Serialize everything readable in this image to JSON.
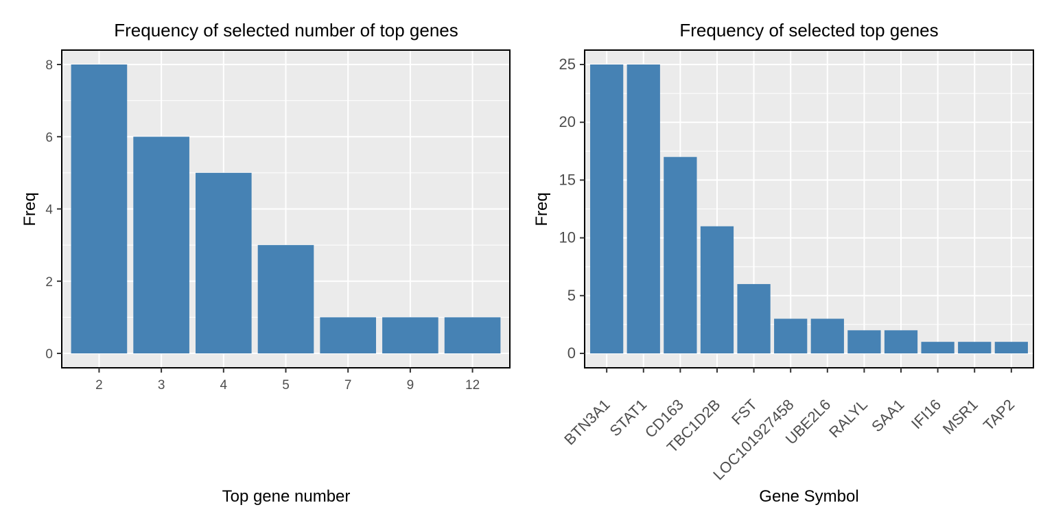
{
  "chart_data": [
    {
      "type": "bar",
      "title": "Frequency of selected number of top genes",
      "xlabel": "Top gene number",
      "ylabel": "Freq",
      "categories": [
        "2",
        "3",
        "4",
        "5",
        "7",
        "9",
        "12"
      ],
      "values": [
        8,
        6,
        5,
        3,
        1,
        1,
        1
      ],
      "ylim": [
        0,
        8
      ],
      "yticks": [
        0,
        2,
        4,
        6,
        8
      ],
      "grid": true,
      "bar_color": "#4682b4",
      "panel_color": "#ebebeb"
    },
    {
      "type": "bar",
      "title": "Frequency of selected top genes",
      "xlabel": "Gene Symbol",
      "ylabel": "Freq",
      "categories": [
        "BTN3A1",
        "STAT1",
        "CD163",
        "TBC1D2B",
        "FST",
        "LOC101927458",
        "UBE2L6",
        "RALYL",
        "SAA1",
        "IFI16",
        "MSR1",
        "TAP2"
      ],
      "values": [
        25,
        25,
        17,
        11,
        6,
        3,
        3,
        2,
        2,
        1,
        1,
        1
      ],
      "ylim": [
        0,
        25
      ],
      "yticks": [
        0,
        5,
        10,
        15,
        20,
        25
      ],
      "grid": true,
      "xtick_rotation": 45,
      "bar_color": "#4682b4",
      "panel_color": "#ebebeb"
    }
  ]
}
